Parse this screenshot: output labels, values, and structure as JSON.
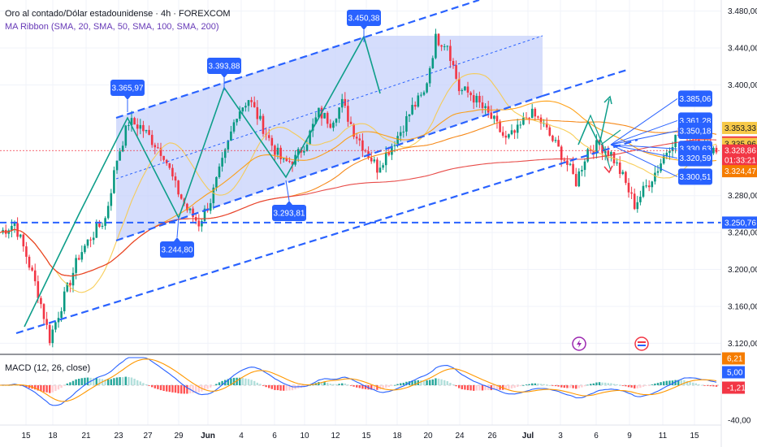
{
  "legend": {
    "title": "Oro al contado/Dólar estadounidense · 4h · FOREXCOM",
    "ma_ribbon": "MA Ribbon (SMA, 20, SMA, 50, SMA, 100, SMA, 200)",
    "macd": "MACD (12, 26, close)"
  },
  "colors": {
    "callout": "#2962ff",
    "channel_fill": "#c7d2fb",
    "candle_up": "#089981",
    "candle_down": "#f23645",
    "zigzag": "#0e9e8a",
    "macd_line": "#2962ff",
    "signal_line": "#ff9800"
  },
  "chart_data": {
    "type": "candlestick",
    "y_ticks": [
      "3.480,00",
      "3.440,00",
      "3.400,00",
      "3.280,00",
      "3.240,00",
      "3.200,00",
      "3.160,00",
      "3.120,00"
    ],
    "y_tick_values": [
      3480,
      3440,
      3400,
      3280,
      3240,
      3200,
      3160,
      3120
    ],
    "ylim": [
      3108,
      3492
    ],
    "x_labels": [
      {
        "label": "15",
        "bold": false
      },
      {
        "label": "18",
        "bold": false
      },
      {
        "label": "21",
        "bold": false
      },
      {
        "label": "23",
        "bold": false
      },
      {
        "label": "27",
        "bold": false
      },
      {
        "label": "29",
        "bold": false
      },
      {
        "label": "Jun",
        "bold": true
      },
      {
        "label": "4",
        "bold": false
      },
      {
        "label": "6",
        "bold": false
      },
      {
        "label": "10",
        "bold": false
      },
      {
        "label": "12",
        "bold": false
      },
      {
        "label": "15",
        "bold": false
      },
      {
        "label": "18",
        "bold": false
      },
      {
        "label": "20",
        "bold": false
      },
      {
        "label": "24",
        "bold": false
      },
      {
        "label": "26",
        "bold": false
      },
      {
        "label": "Jul",
        "bold": true
      },
      {
        "label": "3",
        "bold": false
      },
      {
        "label": "6",
        "bold": false
      },
      {
        "label": "9",
        "bold": false
      },
      {
        "label": "11",
        "bold": false
      },
      {
        "label": "15",
        "bold": false
      }
    ],
    "close_path": [
      [
        0,
        3240
      ],
      [
        5,
        3250
      ],
      [
        9,
        3215
      ],
      [
        13,
        3175
      ],
      [
        17,
        3125
      ],
      [
        22,
        3170
      ],
      [
        27,
        3215
      ],
      [
        31,
        3235
      ],
      [
        36,
        3255
      ],
      [
        40,
        3320
      ],
      [
        44,
        3360
      ],
      [
        48,
        3355
      ],
      [
        52,
        3340
      ],
      [
        56,
        3325
      ],
      [
        60,
        3290
      ],
      [
        64,
        3265
      ],
      [
        68,
        3250
      ],
      [
        72,
        3275
      ],
      [
        77,
        3325
      ],
      [
        81,
        3370
      ],
      [
        85,
        3385
      ],
      [
        89,
        3360
      ],
      [
        93,
        3335
      ],
      [
        97,
        3315
      ],
      [
        101,
        3320
      ],
      [
        105,
        3340
      ],
      [
        109,
        3370
      ],
      [
        113,
        3360
      ],
      [
        117,
        3380
      ],
      [
        121,
        3350
      ],
      [
        125,
        3330
      ],
      [
        129,
        3310
      ],
      [
        133,
        3330
      ],
      [
        137,
        3350
      ],
      [
        141,
        3375
      ],
      [
        145,
        3390
      ],
      [
        149,
        3450
      ],
      [
        153,
        3445
      ],
      [
        157,
        3395
      ],
      [
        161,
        3390
      ],
      [
        165,
        3375
      ],
      [
        169,
        3360
      ],
      [
        173,
        3340
      ],
      [
        177,
        3350
      ],
      [
        181,
        3370
      ],
      [
        185,
        3360
      ],
      [
        189,
        3340
      ],
      [
        193,
        3320
      ],
      [
        197,
        3295
      ],
      [
        201,
        3330
      ],
      [
        205,
        3335
      ],
      [
        209,
        3325
      ],
      [
        213,
        3300
      ],
      [
        217,
        3270
      ],
      [
        221,
        3290
      ],
      [
        225,
        3310
      ],
      [
        229,
        3335
      ],
      [
        233,
        3350
      ],
      [
        237,
        3345
      ],
      [
        241,
        3335
      ],
      [
        245,
        3330
      ]
    ],
    "price_tags": [
      {
        "label": "3.353,33",
        "value": 3353.33,
        "bg": "#f7c948",
        "fg": "#131722"
      },
      {
        "label": "3.337,66",
        "value": 3337.66,
        "bg": "#f23645",
        "fg": "#ffffff"
      },
      {
        "label": "3.335,96",
        "value": 3335.96,
        "bg": "#f7c948",
        "fg": "#131722"
      },
      {
        "label": "3.328,86",
        "value": 3328.86,
        "bg": "#f23645",
        "fg": "#ffffff"
      },
      {
        "label": "01:33:21",
        "value": 3318.5,
        "bg": "#f23645",
        "fg": "#ffffff"
      },
      {
        "label": "3.324,47",
        "value": 3306.5,
        "bg": "#f57c00",
        "fg": "#ffffff"
      },
      {
        "label": "3.250,76",
        "value": 3250.76,
        "bg": "#2962ff",
        "fg": "#ffffff"
      }
    ],
    "swing_callouts": [
      {
        "label": "3.365,97",
        "value": 3365.97,
        "pos": "above"
      },
      {
        "label": "3.393,88",
        "value": 3393.88,
        "pos": "above"
      },
      {
        "label": "3.450,38",
        "value": 3450.38,
        "pos": "above"
      },
      {
        "label": "3.244,80",
        "value": 3244.8,
        "pos": "below"
      },
      {
        "label": "3.293,81",
        "value": 3293.81,
        "pos": "below"
      }
    ],
    "target_callouts": [
      {
        "label": "3.385,06",
        "value": 3385.06
      },
      {
        "label": "3.361,28",
        "value": 3361.28
      },
      {
        "label": "3.350,18",
        "value": 3350.18
      },
      {
        "label": "3.330,63",
        "value": 3330.63
      },
      {
        "label": "3.320,59",
        "value": 3320.59
      },
      {
        "label": "3.300,51",
        "value": 3300.51
      }
    ],
    "macd": {
      "ticks": [
        {
          "label": "6,21",
          "bg": "#f57c00",
          "fg": "#ffffff"
        },
        {
          "label": "5,00",
          "bg": "#2962ff",
          "fg": "#ffffff"
        },
        {
          "label": "-1,21",
          "bg": "#f23645",
          "fg": "#ffffff"
        },
        {
          "label": "-40,00",
          "bg": "",
          "fg": "#131722"
        }
      ]
    }
  }
}
